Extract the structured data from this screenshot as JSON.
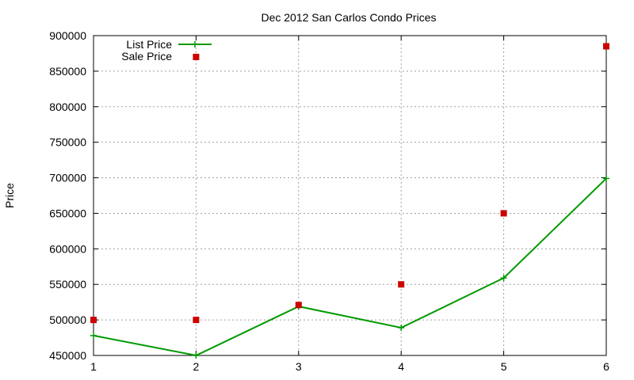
{
  "chart_data": {
    "type": "line",
    "title": "Dec 2012 San Carlos Condo Prices",
    "xlabel": "",
    "ylabel": "Price",
    "x": [
      1,
      2,
      3,
      4,
      5,
      6
    ],
    "xlim": [
      1,
      6
    ],
    "ylim": [
      450000,
      900000
    ],
    "xticks": [
      "1",
      "2",
      "3",
      "4",
      "5",
      "6"
    ],
    "yticks": [
      "450000",
      "500000",
      "550000",
      "600000",
      "650000",
      "700000",
      "750000",
      "800000",
      "850000",
      "900000"
    ],
    "grid": true,
    "legend_position": "top-left",
    "series": [
      {
        "name": "List Price",
        "style": "line-with-plus-markers",
        "color": "#009900",
        "values": [
          478000,
          450000,
          519000,
          489000,
          559000,
          699000
        ]
      },
      {
        "name": "Sale Price",
        "style": "square-points",
        "color": "#cc0000",
        "values": [
          500000,
          500000,
          521000,
          550000,
          650000,
          885000
        ],
        "points": [
          [
            1,
            500000
          ],
          [
            2,
            500000
          ],
          [
            2,
            870000
          ],
          [
            3,
            521000
          ],
          [
            4,
            550000
          ],
          [
            5,
            650000
          ],
          [
            6,
            885000
          ]
        ]
      }
    ]
  }
}
